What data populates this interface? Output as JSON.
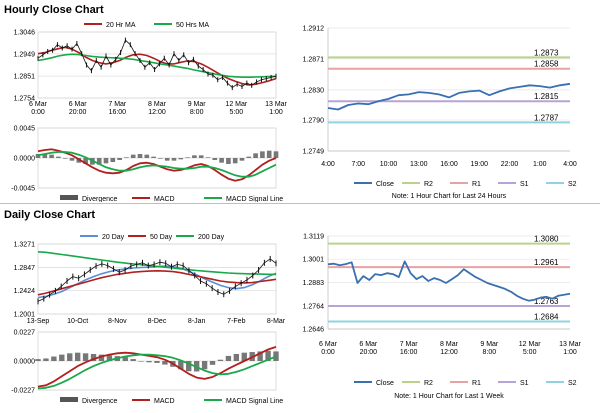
{
  "sections": {
    "hourly_title": "Hourly Close Chart",
    "daily_title": "Daily Close Chart"
  },
  "colors": {
    "close": "#3a6fb0",
    "ma_red": "#b21f1f",
    "ma_green": "#19a84a",
    "ma_blue": "#5a8fd6",
    "r2": "#b9d38a",
    "r1": "#e6a3a3",
    "s1": "#b7a3d6",
    "s2": "#8fd3e0",
    "divergence": "#555555",
    "grid": "#d9d9d9"
  },
  "chart_data": [
    {
      "id": "hourly_price",
      "type": "line",
      "legend": [
        "20 Hr MA",
        "50 Hrs MA"
      ],
      "legend_position": "top",
      "y_ticks": [
        "1.3046",
        "1.2949",
        "1.2851",
        "1.2754"
      ],
      "ylim": [
        1.2754,
        1.3046
      ],
      "x_ticks": [
        [
          "6 Mar",
          "0:00"
        ],
        [
          "6 Mar",
          "20:00"
        ],
        [
          "7 Mar",
          "16:00"
        ],
        [
          "8 Mar",
          "12:00"
        ],
        [
          "9 Mar",
          "8:00"
        ],
        [
          "12 Mar",
          "5:00"
        ],
        [
          "13 Mar",
          "1:00"
        ]
      ],
      "series": [
        {
          "name": "Close",
          "values": [
            1.293,
            1.2945,
            1.296,
            1.2965,
            1.299,
            1.2975,
            1.2985,
            1.297,
            1.2995,
            1.295,
            1.29,
            1.2875,
            1.292,
            1.289,
            1.294,
            1.29,
            1.2925,
            1.2955,
            1.301,
            1.299,
            1.295,
            1.292,
            1.289,
            1.291,
            1.288,
            1.2905,
            1.293,
            1.29,
            1.295,
            1.292,
            1.2945,
            1.291,
            1.2925,
            1.2895,
            1.288,
            1.286,
            1.2855,
            1.2835,
            1.2845,
            1.282,
            1.28,
            1.2815,
            1.2805,
            1.282,
            1.281,
            1.2825,
            1.2835,
            1.284,
            1.2845,
            1.285
          ]
        },
        {
          "name": "20 Hr MA",
          "values": [
            1.295,
            1.2955,
            1.2965,
            1.2972,
            1.2978,
            1.297,
            1.2955,
            1.2935,
            1.292,
            1.291,
            1.2905,
            1.291,
            1.292,
            1.2935,
            1.2945,
            1.2948,
            1.2942,
            1.293,
            1.2915,
            1.2905,
            1.2905,
            1.2912,
            1.2918,
            1.2915,
            1.2905,
            1.289,
            1.2872,
            1.2855,
            1.284,
            1.2828,
            1.2818,
            1.2812,
            1.2815,
            1.2822,
            1.283,
            1.284
          ]
        },
        {
          "name": "50 Hrs MA",
          "values": [
            1.292,
            1.2925,
            1.2932,
            1.294,
            1.2945,
            1.2948,
            1.2946,
            1.2942,
            1.2938,
            1.2935,
            1.2933,
            1.2932,
            1.293,
            1.2928,
            1.2925,
            1.292,
            1.2915,
            1.291,
            1.2905,
            1.29,
            1.2895,
            1.289,
            1.2885,
            1.2878,
            1.2872,
            1.2866,
            1.286,
            1.2855,
            1.285,
            1.2848,
            1.2846,
            1.2846,
            1.2847,
            1.2848,
            1.2849,
            1.285
          ]
        }
      ]
    },
    {
      "id": "hourly_macd",
      "type": "line",
      "legend": [
        "Divergence",
        "MACD",
        "MACD Signal Line"
      ],
      "legend_position": "bottom",
      "y_ticks": [
        "0.0045",
        "0.0000",
        "-0.0045"
      ],
      "ylim": [
        -0.0045,
        0.0045
      ],
      "series": [
        {
          "name": "MACD",
          "values": [
            0.001,
            0.0012,
            0.0013,
            0.0011,
            0.0008,
            0.0004,
            -0.0002,
            -0.0008,
            -0.0014,
            -0.0019,
            -0.0022,
            -0.0023,
            -0.0022,
            -0.0018,
            -0.0012,
            -0.0008,
            -0.0007,
            -0.0009,
            -0.0013,
            -0.0017,
            -0.0019,
            -0.0018,
            -0.0015,
            -0.0011,
            -0.0009,
            -0.0012,
            -0.0018,
            -0.0025,
            -0.0031,
            -0.0034,
            -0.0032,
            -0.0026,
            -0.0018,
            -0.001,
            -0.0004,
            0.0
          ]
        },
        {
          "name": "MACD Signal Line",
          "values": [
            0.0004,
            0.0006,
            0.0008,
            0.0009,
            0.0009,
            0.0008,
            0.0005,
            0.0001,
            -0.0004,
            -0.0009,
            -0.0014,
            -0.0017,
            -0.0019,
            -0.0019,
            -0.0017,
            -0.0014,
            -0.0012,
            -0.0011,
            -0.0012,
            -0.0013,
            -0.0015,
            -0.0016,
            -0.0016,
            -0.0015,
            -0.0013,
            -0.0013,
            -0.0015,
            -0.0018,
            -0.0022,
            -0.0026,
            -0.0028,
            -0.0028,
            -0.0025,
            -0.002,
            -0.0015,
            -0.001
          ]
        },
        {
          "name": "Divergence",
          "values": [
            0.0006,
            0.0006,
            0.0005,
            0.0002,
            -0.0001,
            -0.0004,
            -0.0007,
            -0.0009,
            -0.001,
            -0.001,
            -0.0008,
            -0.0006,
            -0.0003,
            0.0001,
            0.0005,
            0.0006,
            0.0005,
            0.0002,
            -0.0001,
            -0.0004,
            -0.0004,
            -0.0002,
            0.0001,
            0.0004,
            0.0004,
            0.0001,
            -0.0003,
            -0.0007,
            -0.0009,
            -0.0008,
            -0.0004,
            0.0002,
            0.0007,
            0.001,
            0.0011,
            0.001
          ]
        }
      ]
    },
    {
      "id": "hourly_pivot",
      "type": "line",
      "title_note": "Note: 1 Hour Chart for Last 24 Hours",
      "legend": [
        "Close",
        "R2",
        "R1",
        "S1",
        "S2"
      ],
      "legend_position": "bottom",
      "y_ticks": [
        "1.2912",
        "1.2871",
        "1.2830",
        "1.2790",
        "1.2749"
      ],
      "ylim": [
        1.2749,
        1.2912
      ],
      "x_ticks": [
        "4:00",
        "7:00",
        "10:00",
        "13:00",
        "16:00",
        "19:00",
        "22:00",
        "1:00",
        "4:00"
      ],
      "levels": [
        {
          "name": "R2",
          "value": 1.2873,
          "label": "1.2873"
        },
        {
          "name": "R1",
          "value": 1.2858,
          "label": "1.2858"
        },
        {
          "name": "S1",
          "value": 1.2815,
          "label": "1.2815"
        },
        {
          "name": "S2",
          "value": 1.2787,
          "label": "1.2787"
        }
      ],
      "series": [
        {
          "name": "Close",
          "values": [
            1.2806,
            1.2804,
            1.281,
            1.2812,
            1.2811,
            1.2815,
            1.2818,
            1.2823,
            1.2824,
            1.2827,
            1.2826,
            1.2824,
            1.282,
            1.2826,
            1.2828,
            1.2829,
            1.2823,
            1.2828,
            1.2832,
            1.2834,
            1.2836,
            1.2835,
            1.2833,
            1.2836,
            1.2838
          ]
        }
      ]
    },
    {
      "id": "daily_price",
      "type": "line",
      "legend": [
        "20 Day",
        "50 Day",
        "200 Day"
      ],
      "legend_position": "top",
      "y_ticks": [
        "1.3271",
        "1.2847",
        "1.2424",
        "1.2001"
      ],
      "ylim": [
        1.2001,
        1.3271
      ],
      "x_ticks": [
        "13-Sep",
        "10-Oct",
        "8-Nov",
        "8-Dec",
        "8-Jan",
        "7-Feb",
        "8-Mar"
      ],
      "series": [
        {
          "name": "Close",
          "values": [
            1.223,
            1.228,
            1.235,
            1.242,
            1.25,
            1.26,
            1.268,
            1.265,
            1.272,
            1.28,
            1.287,
            1.291,
            1.288,
            1.282,
            1.276,
            1.28,
            1.287,
            1.29,
            1.293,
            1.288,
            1.29,
            1.294,
            1.292,
            1.286,
            1.29,
            1.288,
            1.279,
            1.27,
            1.26,
            1.255,
            1.247,
            1.24,
            1.236,
            1.242,
            1.25,
            1.256,
            1.262,
            1.27,
            1.28,
            1.293,
            1.3,
            1.292
          ]
        },
        {
          "name": "20 Day",
          "values": [
            1.23,
            1.232,
            1.236,
            1.241,
            1.248,
            1.255,
            1.262,
            1.268,
            1.273,
            1.277,
            1.28,
            1.282,
            1.2835,
            1.2845,
            1.285,
            1.286,
            1.287,
            1.286,
            1.283,
            1.278,
            1.271,
            1.264,
            1.258,
            1.252,
            1.248,
            1.246,
            1.248,
            1.253,
            1.26,
            1.268,
            1.274
          ]
        },
        {
          "name": "50 Day",
          "values": [
            1.235,
            1.238,
            1.242,
            1.246,
            1.25,
            1.254,
            1.258,
            1.262,
            1.266,
            1.269,
            1.272,
            1.274,
            1.276,
            1.277,
            1.278,
            1.2785,
            1.278,
            1.277,
            1.275,
            1.272,
            1.269,
            1.266,
            1.263,
            1.26,
            1.258,
            1.257,
            1.2565,
            1.257,
            1.259,
            1.261,
            1.263
          ]
        },
        {
          "name": "200 Day",
          "values": [
            1.313,
            1.312,
            1.31,
            1.308,
            1.306,
            1.304,
            1.302,
            1.3,
            1.298,
            1.296,
            1.294,
            1.2925,
            1.291,
            1.2895,
            1.288,
            1.2865,
            1.285,
            1.2835,
            1.282,
            1.2805,
            1.279,
            1.2778,
            1.2766,
            1.2755,
            1.2745,
            1.2738,
            1.2732,
            1.2728,
            1.2725,
            1.2722,
            1.272
          ]
        }
      ]
    },
    {
      "id": "daily_macd",
      "type": "line",
      "legend": [
        "Divergence",
        "MACD",
        "MACD Signal Line"
      ],
      "legend_position": "bottom",
      "y_ticks": [
        "0.0227",
        "0.0000",
        "-0.0227"
      ],
      "ylim": [
        -0.0227,
        0.0227
      ],
      "series": [
        {
          "name": "MACD",
          "values": [
            -0.02,
            -0.019,
            -0.016,
            -0.012,
            -0.008,
            -0.004,
            -0.001,
            0.0015,
            0.0035,
            0.005,
            0.006,
            0.0065,
            0.006,
            0.005,
            0.004,
            0.003,
            0.001,
            -0.002,
            -0.006,
            -0.01,
            -0.013,
            -0.014,
            -0.0125,
            -0.0095,
            -0.006,
            -0.003,
            0.0,
            0.003,
            0.006,
            0.009,
            0.011
          ]
        },
        {
          "name": "MACD Signal Line",
          "values": [
            -0.0215,
            -0.021,
            -0.0195,
            -0.017,
            -0.014,
            -0.0105,
            -0.007,
            -0.004,
            -0.0015,
            0.0005,
            0.0022,
            0.0035,
            0.0045,
            0.005,
            0.005,
            0.0045,
            0.0038,
            0.0025,
            0.0005,
            -0.002,
            -0.0048,
            -0.0075,
            -0.0095,
            -0.0105,
            -0.01,
            -0.0085,
            -0.0065,
            -0.004,
            -0.0015,
            0.001,
            0.0035
          ]
        },
        {
          "name": "Divergence",
          "values": [
            0.0015,
            0.002,
            0.0035,
            0.005,
            0.006,
            0.0065,
            0.006,
            0.0055,
            0.005,
            0.0045,
            0.0038,
            0.003,
            0.0015,
            0.0,
            -0.001,
            -0.0015,
            -0.0028,
            -0.0045,
            -0.0065,
            -0.008,
            -0.0082,
            -0.0065,
            -0.003,
            0.001,
            0.004,
            0.0055,
            0.0065,
            0.007,
            0.0075,
            0.008,
            0.0075
          ]
        }
      ]
    },
    {
      "id": "daily_pivot",
      "type": "line",
      "title_note": "Note: 1 Hour Chart for Last 1 Week",
      "legend": [
        "Close",
        "R2",
        "R1",
        "S1",
        "S2"
      ],
      "legend_position": "bottom",
      "y_ticks": [
        "1.3119",
        "1.3001",
        "1.2883",
        "1.2764",
        "1.2646"
      ],
      "ylim": [
        1.2646,
        1.3119
      ],
      "x_ticks": [
        [
          "6 Mar",
          "0:00"
        ],
        [
          "6 Mar",
          "20:00"
        ],
        [
          "7 Mar",
          "16:00"
        ],
        [
          "8 Mar",
          "12:00"
        ],
        [
          "9 Mar",
          "8:00"
        ],
        [
          "12 Mar",
          "5:00"
        ],
        [
          "13 Mar",
          "1:00"
        ]
      ],
      "levels": [
        {
          "name": "R2",
          "value": 1.308,
          "label": "1.3080"
        },
        {
          "name": "R1",
          "value": 1.2961,
          "label": "1.2961"
        },
        {
          "name": "S1",
          "value": 1.2763,
          "label": "1.2763"
        },
        {
          "name": "S2",
          "value": 1.2684,
          "label": "1.2684"
        }
      ],
      "series": [
        {
          "name": "Close",
          "values": [
            1.2975,
            1.2978,
            1.297,
            1.2976,
            1.2985,
            1.288,
            1.2915,
            1.2895,
            1.2925,
            1.292,
            1.293,
            1.2925,
            1.291,
            1.299,
            1.293,
            1.29,
            1.2915,
            1.289,
            1.2905,
            1.2895,
            1.288,
            1.29,
            1.292,
            1.295,
            1.293,
            1.291,
            1.2895,
            1.288,
            1.287,
            1.286,
            1.285,
            1.2835,
            1.2815,
            1.28,
            1.279,
            1.2795,
            1.2805,
            1.281,
            1.28,
            1.2815,
            1.282,
            1.2825
          ]
        }
      ]
    }
  ]
}
